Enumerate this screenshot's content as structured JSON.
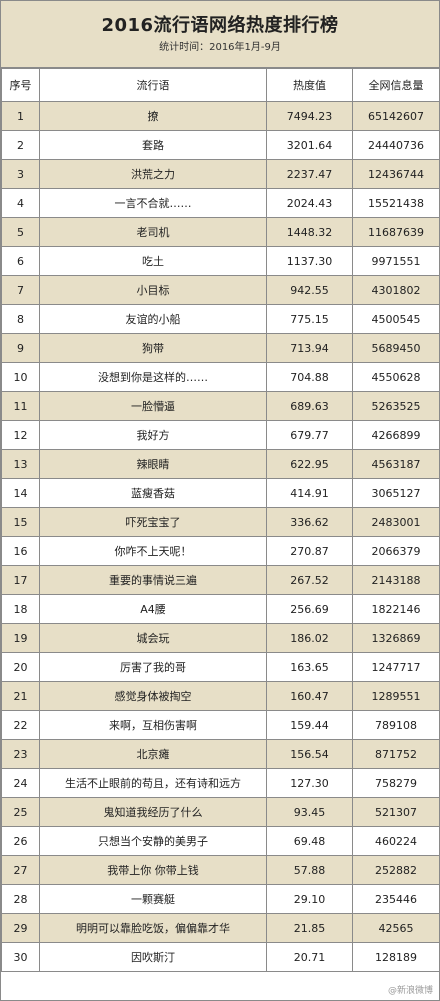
{
  "header": {
    "title": "2016流行语网络热度排行榜",
    "subtitle": "统计时间：2016年1月-9月"
  },
  "columns": [
    "序号",
    "流行语",
    "热度值",
    "全网信息量"
  ],
  "watermark": "@新浪微博",
  "colors": {
    "band": "#e7dfc7",
    "border": "#8a8a8a"
  },
  "chart_data": {
    "type": "table",
    "title": "2016流行语网络热度排行榜",
    "subtitle": "统计时间：2016年1月-9月",
    "columns": [
      "序号",
      "流行语",
      "热度值",
      "全网信息量"
    ],
    "rows": [
      {
        "rank": "1",
        "term": "撩",
        "heat": "7494.23",
        "info": "65142607"
      },
      {
        "rank": "2",
        "term": "套路",
        "heat": "3201.64",
        "info": "24440736"
      },
      {
        "rank": "3",
        "term": "洪荒之力",
        "heat": "2237.47",
        "info": "12436744"
      },
      {
        "rank": "4",
        "term": "一言不合就……",
        "heat": "2024.43",
        "info": "15521438"
      },
      {
        "rank": "5",
        "term": "老司机",
        "heat": "1448.32",
        "info": "11687639"
      },
      {
        "rank": "6",
        "term": "吃土",
        "heat": "1137.30",
        "info": "9971551"
      },
      {
        "rank": "7",
        "term": "小目标",
        "heat": "942.55",
        "info": "4301802"
      },
      {
        "rank": "8",
        "term": "友谊的小船",
        "heat": "775.15",
        "info": "4500545"
      },
      {
        "rank": "9",
        "term": "狗带",
        "heat": "713.94",
        "info": "5689450"
      },
      {
        "rank": "10",
        "term": "没想到你是这样的……",
        "heat": "704.88",
        "info": "4550628"
      },
      {
        "rank": "11",
        "term": "一脸懵逼",
        "heat": "689.63",
        "info": "5263525"
      },
      {
        "rank": "12",
        "term": "我好方",
        "heat": "679.77",
        "info": "4266899"
      },
      {
        "rank": "13",
        "term": "辣眼睛",
        "heat": "622.95",
        "info": "4563187"
      },
      {
        "rank": "14",
        "term": "蓝瘦香菇",
        "heat": "414.91",
        "info": "3065127"
      },
      {
        "rank": "15",
        "term": "吓死宝宝了",
        "heat": "336.62",
        "info": "2483001"
      },
      {
        "rank": "16",
        "term": "你咋不上天呢！",
        "heat": "270.87",
        "info": "2066379"
      },
      {
        "rank": "17",
        "term": "重要的事情说三遍",
        "heat": "267.52",
        "info": "2143188"
      },
      {
        "rank": "18",
        "term": "A4腰",
        "heat": "256.69",
        "info": "1822146"
      },
      {
        "rank": "19",
        "term": "城会玩",
        "heat": "186.02",
        "info": "1326869"
      },
      {
        "rank": "20",
        "term": "厉害了我的哥",
        "heat": "163.65",
        "info": "1247717"
      },
      {
        "rank": "21",
        "term": "感觉身体被掏空",
        "heat": "160.47",
        "info": "1289551"
      },
      {
        "rank": "22",
        "term": "来啊，互相伤害啊",
        "heat": "159.44",
        "info": "789108"
      },
      {
        "rank": "23",
        "term": "北京瘫",
        "heat": "156.54",
        "info": "871752"
      },
      {
        "rank": "24",
        "term": "生活不止眼前的苟且，还有诗和远方",
        "heat": "127.30",
        "info": "758279"
      },
      {
        "rank": "25",
        "term": "鬼知道我经历了什么",
        "heat": "93.45",
        "info": "521307"
      },
      {
        "rank": "26",
        "term": "只想当个安静的美男子",
        "heat": "69.48",
        "info": "460224"
      },
      {
        "rank": "27",
        "term": "我带上你 你带上钱",
        "heat": "57.88",
        "info": "252882"
      },
      {
        "rank": "28",
        "term": "一颗赛艇",
        "heat": "29.10",
        "info": "235446"
      },
      {
        "rank": "29",
        "term": "明明可以靠脸吃饭，偏偏靠才华",
        "heat": "21.85",
        "info": "42565"
      },
      {
        "rank": "30",
        "term": "因吹斯汀",
        "heat": "20.71",
        "info": "128189"
      }
    ]
  }
}
